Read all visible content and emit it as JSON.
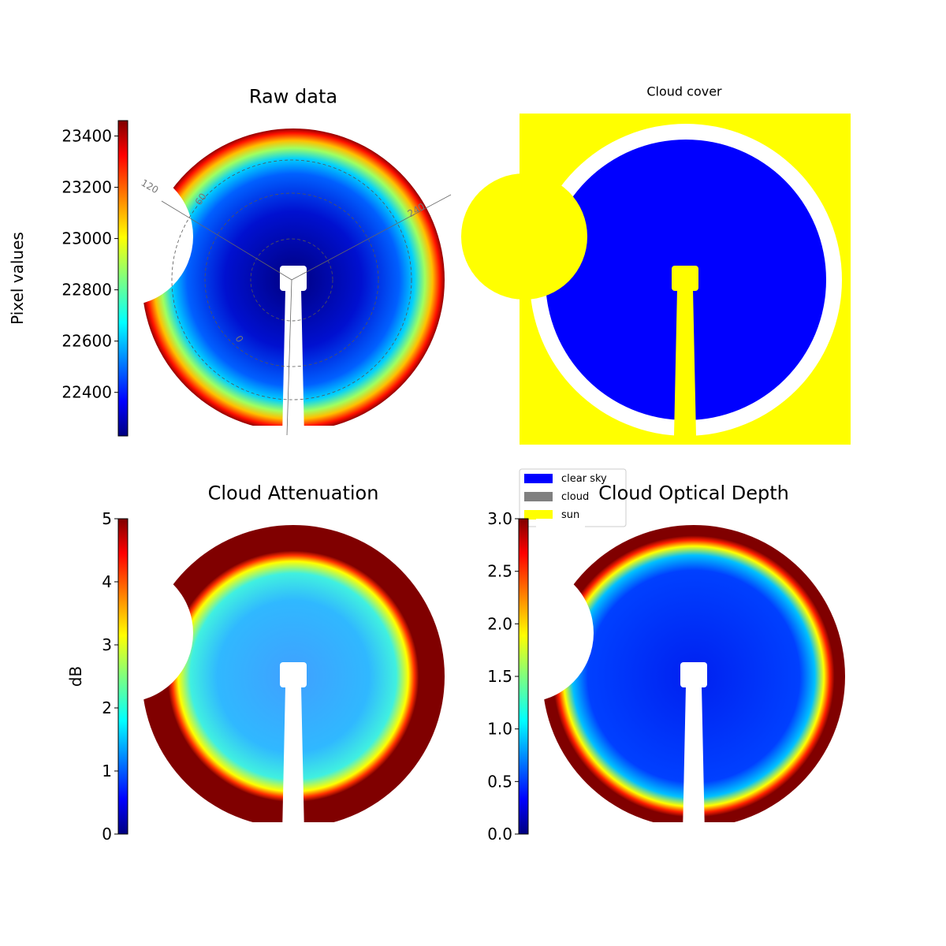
{
  "chart_data": [
    {
      "type": "image",
      "title": "Raw data",
      "ylabel": "Pixel values",
      "colormap": "jet",
      "ylim": [
        22230,
        23460
      ],
      "yticks": [
        22400,
        22600,
        22800,
        23000,
        23200,
        23400
      ],
      "annotations": [
        "120",
        "60",
        "240",
        "0"
      ]
    },
    {
      "type": "image",
      "title": "Cloud cover",
      "series": [
        {
          "name": "clear sky",
          "color": "#0000ff"
        },
        {
          "name": "cloud",
          "color": "#808080"
        },
        {
          "name": "sun",
          "color": "#ffff00"
        }
      ]
    },
    {
      "type": "image",
      "title": "Cloud Attenuation",
      "ylabel": "dB",
      "colormap": "jet",
      "ylim": [
        0,
        5
      ],
      "yticks": [
        0,
        1,
        2,
        3,
        4,
        5
      ]
    },
    {
      "type": "image",
      "title": "Cloud Optical Depth",
      "colormap": "jet",
      "ylim": [
        0,
        3
      ],
      "yticks": [
        {
          "value": 0,
          "label": "0.0"
        },
        {
          "value": 0.5,
          "label": "0.5"
        },
        {
          "value": 1,
          "label": "1.0"
        },
        {
          "value": 1.5,
          "label": "1.5"
        },
        {
          "value": 2,
          "label": "2.0"
        },
        {
          "value": 2.5,
          "label": "2.5"
        },
        {
          "value": 3,
          "label": "3.0"
        }
      ]
    }
  ]
}
